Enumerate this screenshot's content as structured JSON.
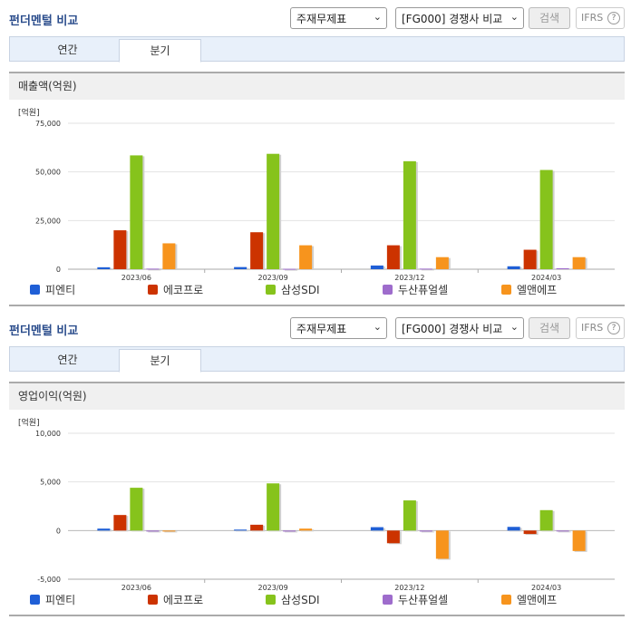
{
  "panels": [
    {
      "title": "펀더멘털 비교",
      "select1": "주재무제표",
      "select2": "[FG000] 경쟁사 비교",
      "search_label": "검색",
      "ifrs_label": "IFRS",
      "tabs": [
        "연간",
        "분기"
      ],
      "active_tab": 1,
      "section_title": "매출액(억원)",
      "unit": "[억원]"
    },
    {
      "title": "펀더멘털 비교",
      "select1": "주재무제표",
      "select2": "[FG000] 경쟁사 비교",
      "search_label": "검색",
      "ifrs_label": "IFRS",
      "tabs": [
        "연간",
        "분기"
      ],
      "active_tab": 1,
      "section_title": "영업이익(억원)",
      "unit": "[억원]"
    }
  ],
  "chart_data": [
    {
      "type": "bar",
      "title": "매출액(억원)",
      "ylabel": "[억원]",
      "categories": [
        "2023/06",
        "2023/09",
        "2023/12",
        "2024/03"
      ],
      "ylim": [
        0,
        75000
      ],
      "yticks": [
        0,
        25000,
        50000,
        75000
      ],
      "ytick_labels": [
        "0",
        "25,000",
        "50,000",
        "75,000"
      ],
      "grid": true,
      "legend": "bottom",
      "series": [
        {
          "name": "피엔티",
          "color": "#1f5fd6",
          "values": [
            1000,
            1100,
            1900,
            1500
          ]
        },
        {
          "name": "에코프로",
          "color": "#cc3300",
          "values": [
            20000,
            19000,
            12300,
            10000
          ]
        },
        {
          "name": "삼성SDI",
          "color": "#86c31c",
          "values": [
            58500,
            59300,
            55500,
            51000
          ]
        },
        {
          "name": "두산퓨얼셀",
          "color": "#9e6ccc",
          "values": [
            300,
            200,
            300,
            500
          ]
        },
        {
          "name": "엘앤에프",
          "color": "#f7941d",
          "values": [
            13300,
            12300,
            6200,
            6200
          ]
        }
      ]
    },
    {
      "type": "bar",
      "title": "영업이익(억원)",
      "ylabel": "[억원]",
      "categories": [
        "2023/06",
        "2023/09",
        "2023/12",
        "2024/03"
      ],
      "ylim": [
        -5000,
        10000
      ],
      "yticks": [
        -5000,
        0,
        5000,
        10000
      ],
      "ytick_labels": [
        "-5,000",
        "0",
        "5,000",
        "10,000"
      ],
      "grid": true,
      "legend": "bottom",
      "series": [
        {
          "name": "피엔티",
          "color": "#1f5fd6",
          "values": [
            200,
            100,
            350,
            380
          ]
        },
        {
          "name": "에코프로",
          "color": "#cc3300",
          "values": [
            1600,
            600,
            -1300,
            -350
          ]
        },
        {
          "name": "삼성SDI",
          "color": "#86c31c",
          "values": [
            4400,
            4850,
            3100,
            2100
          ]
        },
        {
          "name": "두산퓨얼셀",
          "color": "#9e6ccc",
          "values": [
            -100,
            -100,
            -100,
            -50
          ]
        },
        {
          "name": "엘앤에프",
          "color": "#f7941d",
          "values": [
            -100,
            200,
            -2900,
            -2100
          ]
        }
      ]
    }
  ]
}
